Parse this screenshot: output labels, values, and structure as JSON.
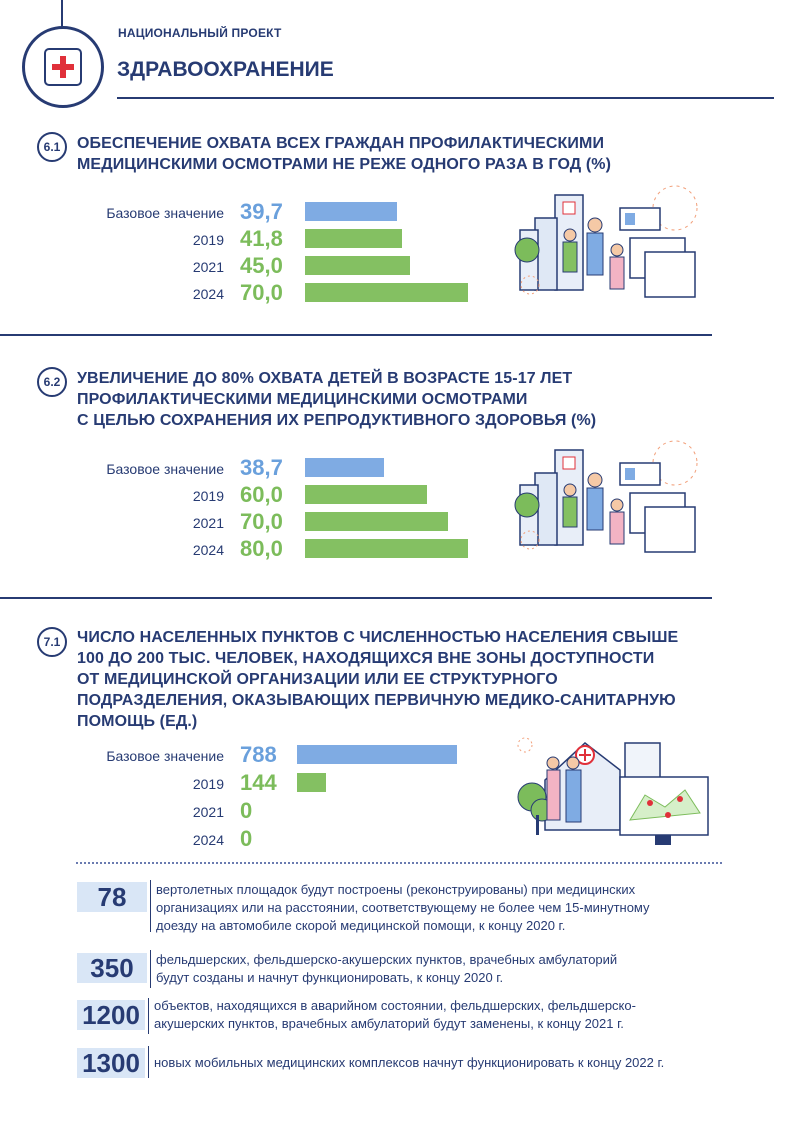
{
  "header": {
    "project_label": "НАЦИОНАЛЬНЫЙ ПРОЕКТ",
    "project_title": "ЗДРАВООХРАНЕНИЕ"
  },
  "sections": [
    {
      "number": "6.1",
      "title_lines": [
        "ОБЕСПЕЧЕНИЕ ОХВАТА ВСЕХ ГРАЖДАН ПРОФИЛАКТИЧЕСКИМИ",
        "МЕДИЦИНСКИМИ ОСМОТРАМИ НЕ РЕЖЕ ОДНОГО РАЗА В ГОД (%)"
      ],
      "rows": [
        {
          "label": "Базовое значение",
          "value": "39,7",
          "num": 39.7,
          "kind": "base"
        },
        {
          "label": "2019",
          "value": "41,8",
          "num": 41.8,
          "kind": "target"
        },
        {
          "label": "2021",
          "value": "45,0",
          "num": 45.0,
          "kind": "target"
        },
        {
          "label": "2024",
          "value": "70,0",
          "num": 70.0,
          "kind": "target"
        }
      ]
    },
    {
      "number": "6.2",
      "title_lines": [
        "УВЕЛИЧЕНИЕ ДО 80% ОХВАТА ДЕТЕЙ В ВОЗРАСТЕ 15-17 ЛЕТ",
        "ПРОФИЛАКТИЧЕСКИМИ МЕДИЦИНСКИМИ ОСМОТРАМИ",
        "С ЦЕЛЬЮ СОХРАНЕНИЯ ИХ РЕПРОДУКТИВНОГО ЗДОРОВЬЯ (%)"
      ],
      "rows": [
        {
          "label": "Базовое значение",
          "value": "38,7",
          "num": 38.7,
          "kind": "base"
        },
        {
          "label": "2019",
          "value": "60,0",
          "num": 60.0,
          "kind": "target"
        },
        {
          "label": "2021",
          "value": "70,0",
          "num": 70.0,
          "kind": "target"
        },
        {
          "label": "2024",
          "value": "80,0",
          "num": 80.0,
          "kind": "target"
        }
      ]
    },
    {
      "number": "7.1",
      "title_lines": [
        "ЧИСЛО НАСЕЛЕННЫХ ПУНКТОВ С ЧИСЛЕННОСТЬЮ НАСЕЛЕНИЯ СВЫШЕ",
        "100 ДО 200 ТЫС. ЧЕЛОВЕК, НАХОДЯЩИХСЯ ВНЕ ЗОНЫ ДОСТУПНОСТИ",
        "ОТ МЕДИЦИНСКОЙ ОРГАНИЗАЦИИ ИЛИ ЕЕ СТРУКТУРНОГО",
        "ПОДРАЗДЕЛЕНИЯ, ОКАЗЫВАЮЩИХ ПЕРВИЧНУЮ МЕДИКО-САНИТАРНУЮ",
        "ПОМОЩЬ (ЕД.)"
      ],
      "rows": [
        {
          "label": "Базовое значение",
          "value": "788",
          "num": 788,
          "kind": "base"
        },
        {
          "label": "2019",
          "value": "144",
          "num": 144,
          "kind": "target"
        },
        {
          "label": "2021",
          "value": "0",
          "num": 0,
          "kind": "target"
        },
        {
          "label": "2024",
          "value": "0",
          "num": 0,
          "kind": "target"
        }
      ]
    }
  ],
  "facts": [
    {
      "number": "78",
      "text_lines": [
        "вертолетных площадок будут построены (реконструированы) при медицинских",
        "организациях или на расстоянии, соответствующему не более чем 15-минутному",
        "доезду на автомобиле скорой медицинской помощи, к концу 2020 г."
      ]
    },
    {
      "number": "350",
      "text_lines": [
        "фельдшерских, фельдшерско-акушерских пунктов, врачебных амбулаторий",
        "будут созданы и начнут функционировать, к концу 2020 г."
      ]
    },
    {
      "number": "1200",
      "text_lines": [
        "объектов, находящихся в аварийном состоянии, фельдшерских, фельдшерско-",
        "акушерских пунктов, врачебных амбулаторий будут заменены, к концу 2021 г."
      ]
    },
    {
      "number": "1300",
      "text_lines": [
        "новых мобильных медицинских комплексов начнут функционировать к концу 2022 г."
      ]
    }
  ],
  "colors": {
    "navy": "#273b73",
    "base_bar": "#7fabe3",
    "target_bar": "#84c062",
    "cross": "#e0303a"
  }
}
